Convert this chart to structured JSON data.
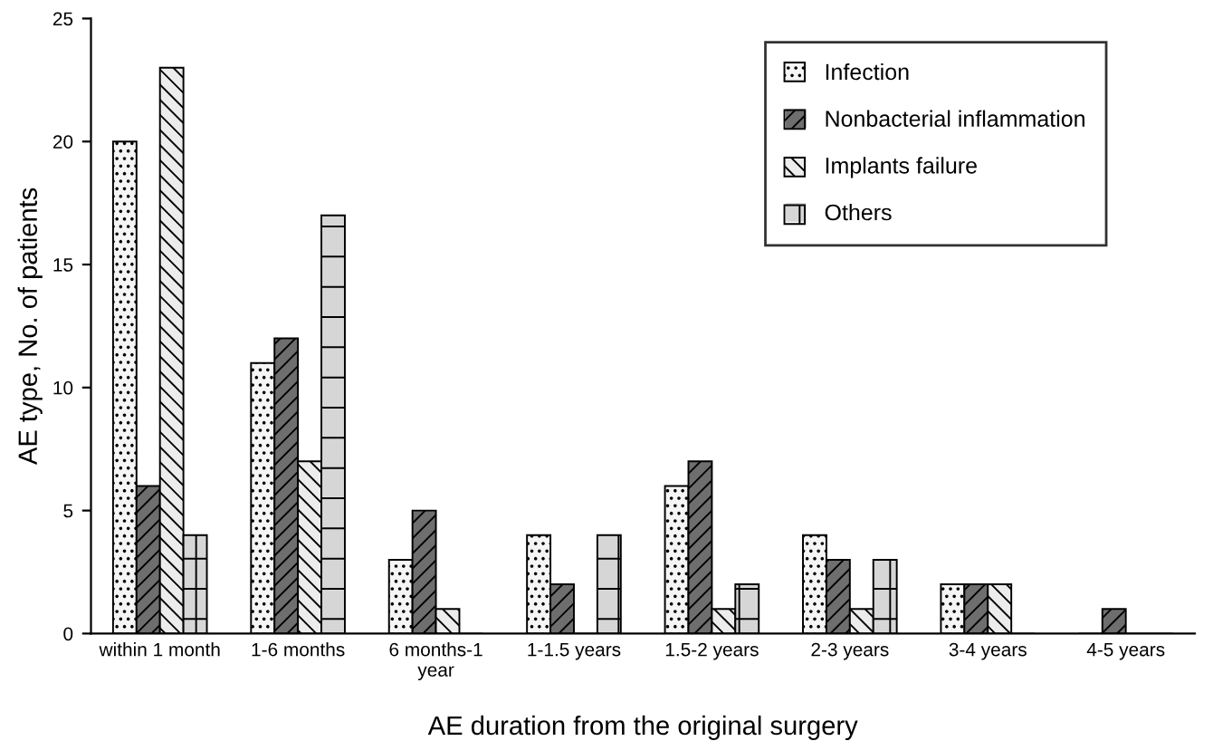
{
  "chart_data": {
    "type": "bar",
    "xlabel": "AE duration from the original surgery",
    "ylabel": "AE type, No. of patients",
    "categories": [
      "within 1 month",
      "1-6 months",
      "6 months-1\nyear",
      "1-1.5 years",
      "1.5-2 years",
      "2-3 years",
      "3-4 years",
      "4-5 years"
    ],
    "series": [
      {
        "name": "Infection",
        "color": "#f5f5f5",
        "values": [
          20,
          11,
          3,
          4,
          6,
          4,
          2,
          0
        ]
      },
      {
        "name": "Nonbacterial inflammation",
        "color": "#6e6e6e",
        "values": [
          6,
          12,
          5,
          2,
          7,
          3,
          2,
          1
        ]
      },
      {
        "name": "Implants failure",
        "color": "#ececec",
        "values": [
          23,
          7,
          1,
          0,
          1,
          1,
          2,
          0
        ]
      },
      {
        "name": "Others",
        "color": "#d6d6d6",
        "values": [
          4,
          17,
          0,
          4,
          2,
          3,
          0,
          0
        ]
      }
    ],
    "ylim": [
      0,
      25
    ],
    "yticks": [
      0,
      5,
      10,
      15,
      20,
      25
    ],
    "grid": false,
    "legend": "top right"
  }
}
